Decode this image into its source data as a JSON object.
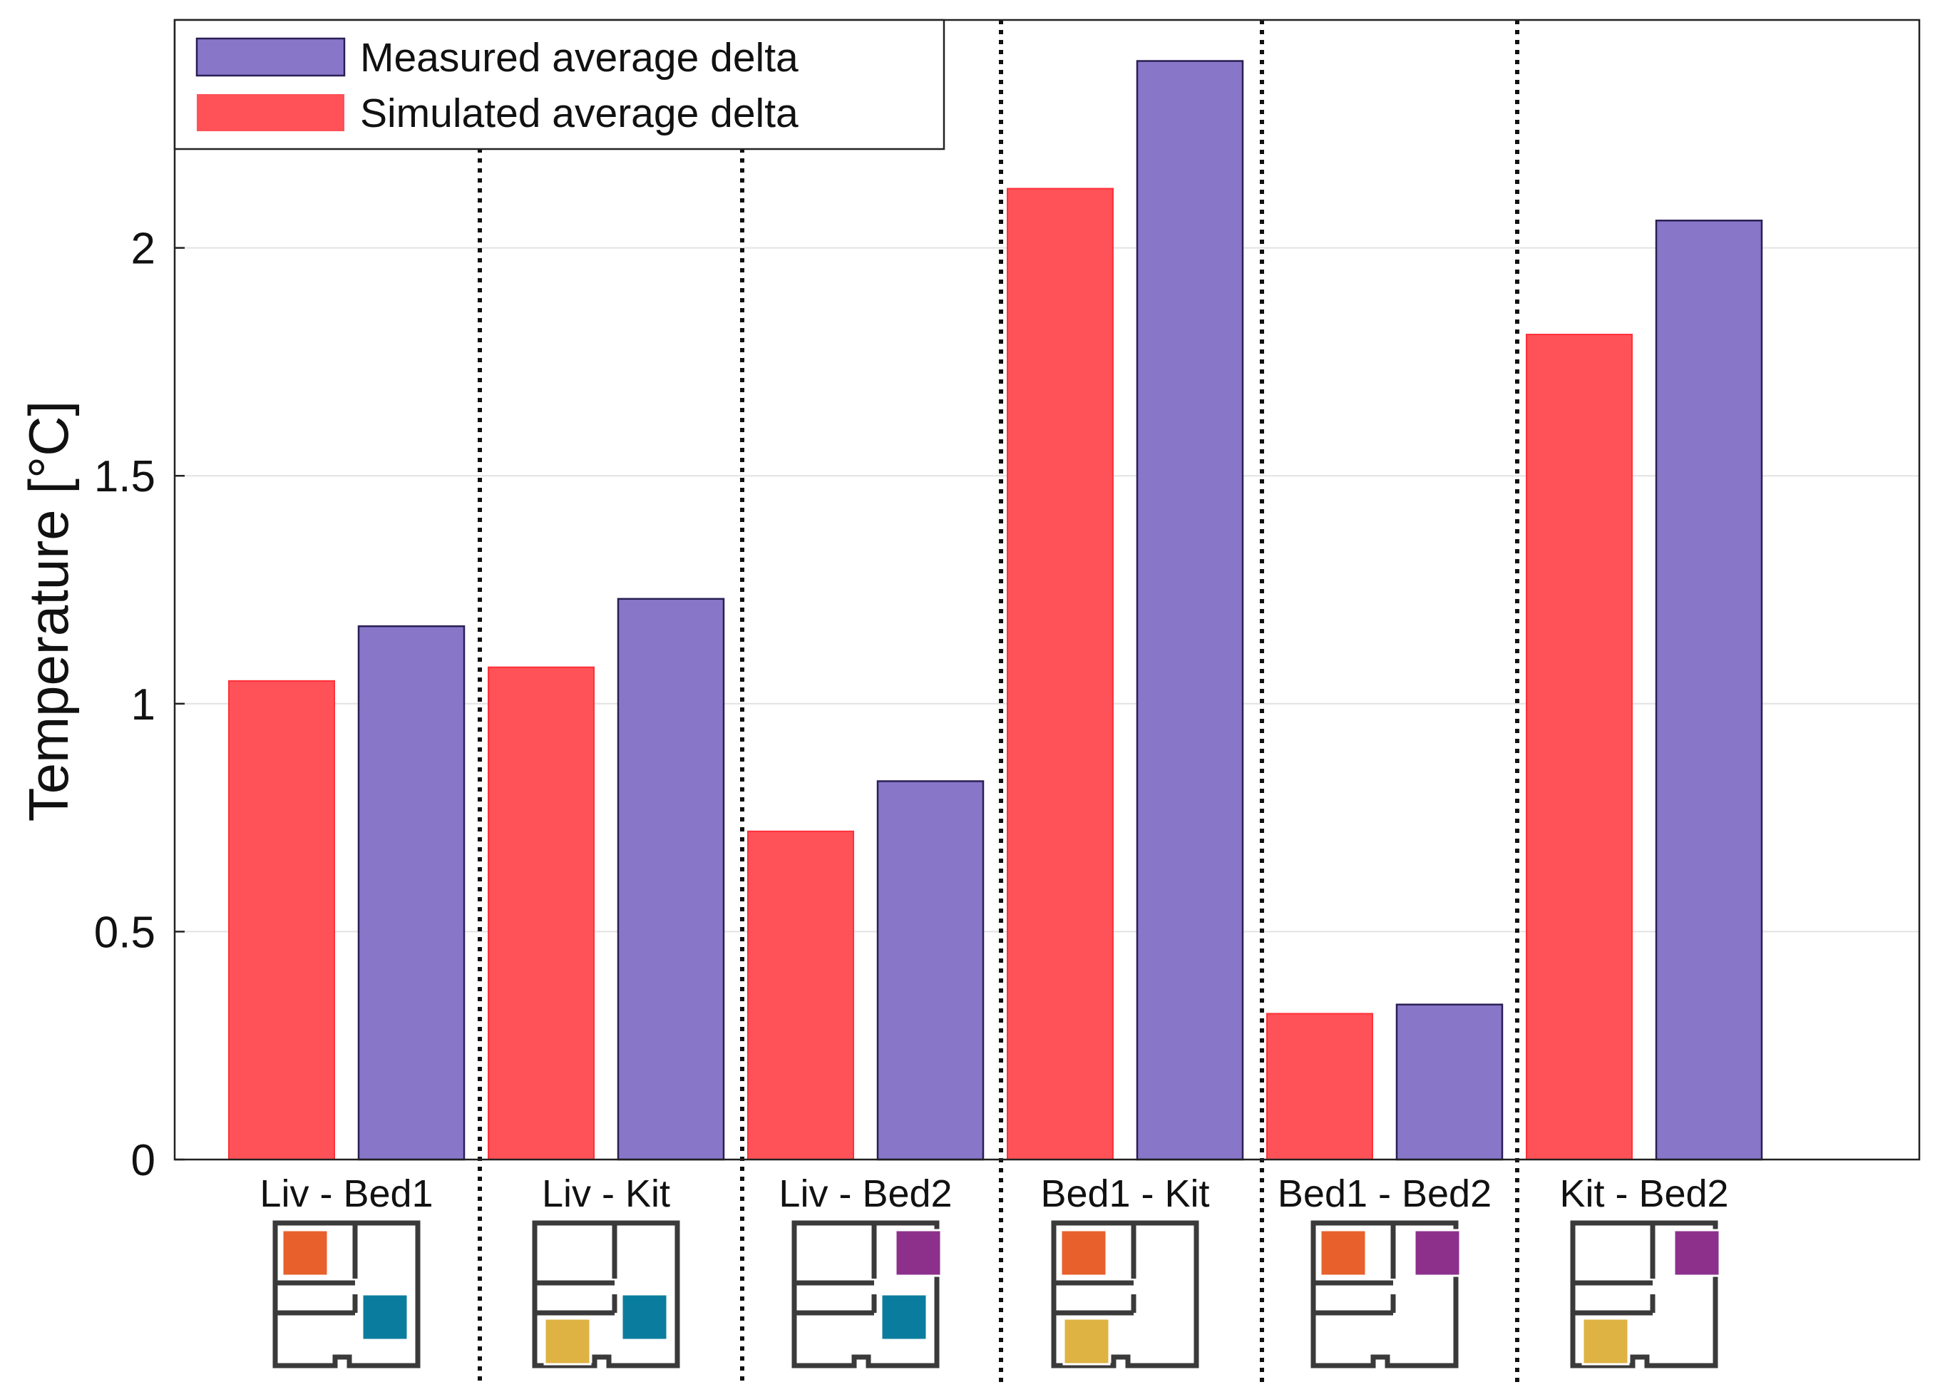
{
  "colors": {
    "simulated": "#ff5258",
    "measured": "#8876c8",
    "room_orange": "#e8612c",
    "room_teal": "#0a7d9e",
    "room_yellow": "#deb344",
    "room_purple": "#8c308c",
    "floorplan_wall": "#3a3a3a"
  },
  "chart_data": {
    "type": "bar",
    "title": "",
    "xlabel": "",
    "ylabel": "Temperature [°C]",
    "ylim": [
      0,
      2.5
    ],
    "yticks": [
      0,
      0.5,
      1,
      1.5,
      2
    ],
    "ytick_labels": [
      "0",
      "0.5",
      "1",
      "1.5",
      "2"
    ],
    "grid": true,
    "legend_position": "top-left",
    "categories": [
      "Liv - Bed1",
      "Liv - Kit",
      "Liv - Bed2",
      "Bed1 - Kit",
      "Bed1 - Bed2",
      "Kit - Bed2"
    ],
    "series": [
      {
        "name": "Simulated average delta",
        "color_key": "simulated",
        "values": [
          1.05,
          1.08,
          0.72,
          2.13,
          0.32,
          1.81
        ]
      },
      {
        "name": "Measured average delta",
        "color_key": "measured",
        "values": [
          1.17,
          1.23,
          0.83,
          2.41,
          0.34,
          2.06
        ]
      }
    ],
    "legend": [
      {
        "label": "Measured average delta",
        "color_key": "measured"
      },
      {
        "label": "Simulated average delta",
        "color_key": "simulated"
      }
    ],
    "room_icons": [
      [
        "room_orange",
        "room_teal"
      ],
      [
        "room_teal",
        "room_yellow"
      ],
      [
        "room_purple",
        "room_teal"
      ],
      [
        "room_orange",
        "room_yellow"
      ],
      [
        "room_orange",
        "room_purple"
      ],
      [
        "room_purple",
        "room_yellow"
      ]
    ]
  }
}
